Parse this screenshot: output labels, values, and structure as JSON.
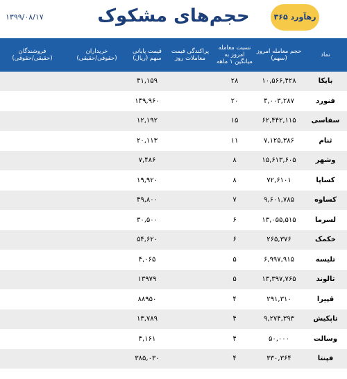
{
  "header": {
    "title": "حجم‌های مشکوک",
    "date": "۱۳۹۹/۰۸/۱۷",
    "logo": "رهآورد ۳۶۵"
  },
  "table": {
    "columns": [
      "نماد",
      "حجم معامله امروز (سهم)",
      "نسبت معامله امروز به میانگین ۱ ماهه",
      "پراکندگی قیمت معاملات روز",
      "قیمت پایانی سهم (ریال)",
      "خریداران",
      "فروشندگان"
    ],
    "column_notes": [
      "(حقوقی/حقیقی)",
      "(حقیقی/حقوقی)"
    ],
    "rows": [
      [
        "بایکا",
        "۱۰,۵۶۶,۴۲۸",
        "۲۸",
        "۴۱,۱۵۹"
      ],
      [
        "فنورد",
        "۴,۰۰۳,۲۸۷",
        "۲۰",
        "۱۴۹,۹۶۰"
      ],
      [
        "سفاسی",
        "۶۲,۴۴۲,۱۱۵",
        "۱۵",
        "۱۲,۱۹۲"
      ],
      [
        "ثنام",
        "۷,۱۲۵,۳۸۶",
        "۱۱",
        "۲۰,۱۱۳"
      ],
      [
        "وشهر",
        "۱۵,۶۱۳,۶۰۵",
        "۸",
        "۷,۴۸۶"
      ],
      [
        "کساپا",
        "۷۲,۶۱۰۱",
        "۸",
        "۱۹,۹۲۰"
      ],
      [
        "کساوه",
        "۹,۶۰۱,۷۸۵",
        "۷",
        "۴۹,۸۰۰"
      ],
      [
        "لسرما",
        "۱۳,۰۵۵,۵۱۵",
        "۶",
        "۳۰,۵۰۰"
      ],
      [
        "خکمک",
        "۲۶۵,۳۷۶",
        "۶",
        "۵۴,۶۲۰"
      ],
      [
        "تلیسه",
        "۶,۹۹۷,۹۱۵",
        "۵",
        "۴,۰۶۵"
      ],
      [
        "ثالوند",
        "۱۳,۳۹۷,۷۶۵",
        "۵",
        "۱۳۹۷۹"
      ],
      [
        "قپیرا",
        "۲۹۱,۳۱۰",
        "۴",
        "۸۸۹۵۰"
      ],
      [
        "تاپکیش",
        "۹,۲۷۴,۳۹۳",
        "۴",
        "۱۳,۷۸۹"
      ],
      [
        "وسالت",
        "۵۰,۰۰۰",
        "۴",
        "۴,۱۶۱"
      ],
      [
        "فپنتا",
        "۳۳۰,۳۶۴",
        "۴",
        "۳۸۵,۰۳۰"
      ]
    ]
  }
}
